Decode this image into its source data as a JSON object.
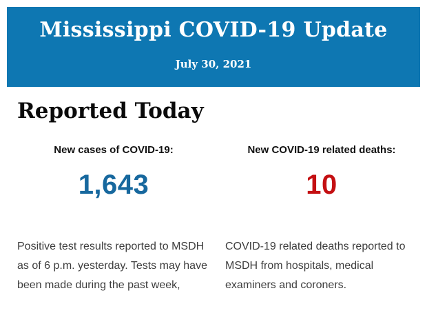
{
  "banner": {
    "title": "Mississippi COVID-19 Update",
    "date": "July 30, 2021",
    "bg_color": "#0e77b2",
    "text_color": "#ffffff"
  },
  "section": {
    "heading": "Reported Today"
  },
  "stats": {
    "cases": {
      "label": "New cases of COVID-19:",
      "value": "1,643",
      "value_color": "#17689e",
      "description": "Positive test results reported to MSDH as of 6 p.m. yesterday. Tests may have been made during the past week,"
    },
    "deaths": {
      "label": "New COVID-19 related deaths:",
      "value": "10",
      "value_color": "#c40f12",
      "description": "COVID-19 related deaths reported to MSDH from hospitals, medical examiners and coroners."
    }
  }
}
